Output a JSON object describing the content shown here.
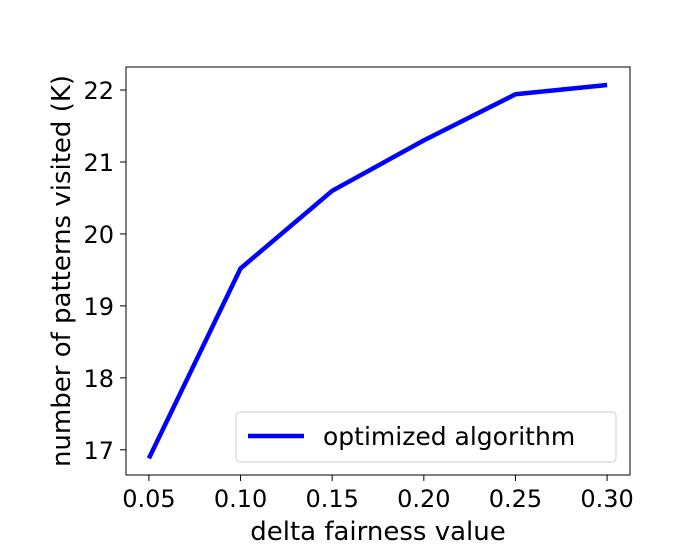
{
  "chart_data": {
    "type": "line",
    "xlabel": "delta fairness value",
    "ylabel": "number of patterns visited (K)",
    "xlim": [
      0.0375,
      0.3125
    ],
    "ylim": [
      16.65,
      22.32
    ],
    "x_ticks": [
      0.05,
      0.1,
      0.15,
      0.2,
      0.25,
      0.3
    ],
    "x_tick_labels": [
      "0.05",
      "0.10",
      "0.15",
      "0.20",
      "0.25",
      "0.30"
    ],
    "y_ticks": [
      17,
      18,
      19,
      20,
      21,
      22
    ],
    "y_tick_labels": [
      "17",
      "18",
      "19",
      "20",
      "21",
      "22"
    ],
    "grid": false,
    "legend_position": "lower-right",
    "series": [
      {
        "name": "optimized algorithm",
        "color": "#0000ff",
        "x": [
          0.05,
          0.1,
          0.15,
          0.2,
          0.25,
          0.3
        ],
        "y": [
          16.88,
          19.52,
          20.6,
          21.3,
          21.94,
          22.07
        ]
      }
    ]
  }
}
